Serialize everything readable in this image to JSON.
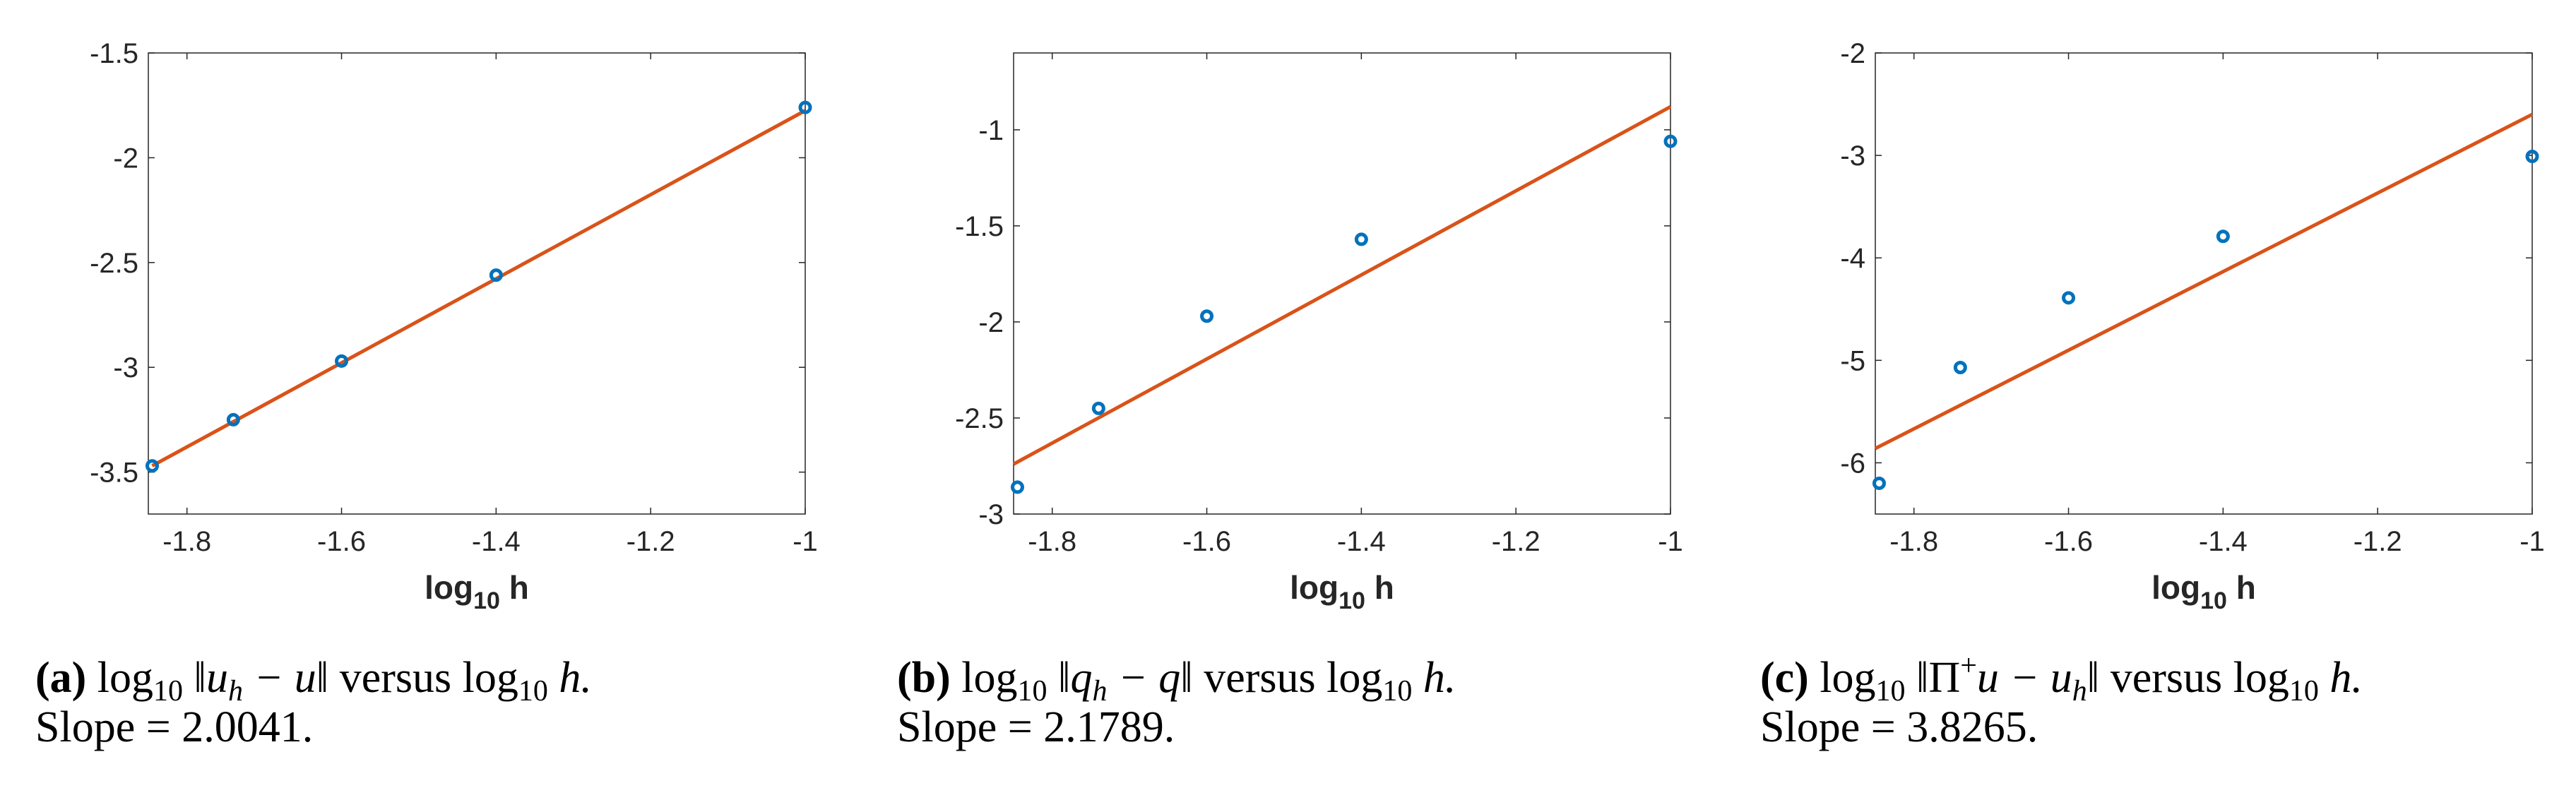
{
  "chart_data": [
    {
      "type": "scatter",
      "panel_label": "(a)",
      "xlabel": "log",
      "xlabel_sub": "10",
      "xlabel_var": "h",
      "xlim": [
        -1.85,
        -1.0
      ],
      "ylim": [
        -3.7,
        -1.5
      ],
      "xticks": [
        -1.8,
        -1.6,
        -1.4,
        -1.2,
        -1
      ],
      "xtick_labels": [
        "-1.8",
        "-1.6",
        "-1.4",
        "-1.2",
        "-1"
      ],
      "yticks": [
        -3.5,
        -3,
        -2.5,
        -2,
        -1.5
      ],
      "ytick_labels": [
        "-3.5",
        "-3",
        "-2.5",
        "-2",
        "-1.5"
      ],
      "series": [
        {
          "name": "data",
          "x": [
            -1.845,
            -1.74,
            -1.6,
            -1.4,
            -1.0
          ],
          "y": [
            -3.47,
            -3.25,
            -2.97,
            -2.56,
            -1.76
          ]
        },
        {
          "name": "fit",
          "x": [
            -1.845,
            -1.0
          ],
          "y": [
            -3.47,
            -1.775
          ]
        }
      ],
      "caption": {
        "tag": "(a)",
        "before": "log",
        "sub": "10",
        "norm_open": " ‖",
        "expr_var": "u",
        "expr_sub": "h",
        "expr_rest": " − u",
        "norm_close": "‖",
        "versus": "  versus  log",
        "versus_sub": "10",
        "versus_var": " h.",
        "slope": "Slope = 2.0041."
      }
    },
    {
      "type": "scatter",
      "panel_label": "(b)",
      "xlabel": "log",
      "xlabel_sub": "10",
      "xlabel_var": "h",
      "xlim": [
        -1.85,
        -1.0
      ],
      "ylim": [
        -3.0,
        -0.6
      ],
      "xticks": [
        -1.8,
        -1.6,
        -1.4,
        -1.2,
        -1
      ],
      "xtick_labels": [
        "-1.8",
        "-1.6",
        "-1.4",
        "-1.2",
        "-1"
      ],
      "yticks": [
        -3,
        -2.5,
        -2,
        -1.5,
        -1
      ],
      "ytick_labels": [
        "-3",
        "-2.5",
        "-2",
        "-1.5",
        "-1"
      ],
      "series": [
        {
          "name": "data",
          "x": [
            -1.845,
            -1.74,
            -1.6,
            -1.4,
            -1.0
          ],
          "y": [
            -2.86,
            -2.45,
            -1.97,
            -1.57,
            -1.06
          ]
        },
        {
          "name": "fit",
          "x": [
            -1.85,
            -1.0
          ],
          "y": [
            -2.74,
            -0.88
          ]
        }
      ],
      "caption": {
        "tag": "(b)",
        "before": "log",
        "sub": "10",
        "norm_open": " ‖",
        "expr_var": "q",
        "expr_sub": "h",
        "expr_rest": " − q",
        "norm_close": "‖",
        "versus": "  versus  log",
        "versus_sub": "10",
        "versus_var": " h.",
        "slope": "Slope = 2.1789."
      }
    },
    {
      "type": "scatter",
      "panel_label": "(c)",
      "xlabel": "log",
      "xlabel_sub": "10",
      "xlabel_var": "h",
      "xlim": [
        -1.85,
        -1.0
      ],
      "ylim": [
        -6.5,
        -2.0
      ],
      "xticks": [
        -1.8,
        -1.6,
        -1.4,
        -1.2,
        -1
      ],
      "xtick_labels": [
        "-1.8",
        "-1.6",
        "-1.4",
        "-1.2",
        "-1"
      ],
      "yticks": [
        -6,
        -5,
        -4,
        -3,
        -2
      ],
      "ytick_labels": [
        "-6",
        "-5",
        "-4",
        "-3",
        "-2"
      ],
      "series": [
        {
          "name": "data",
          "x": [
            -1.845,
            -1.74,
            -1.6,
            -1.4,
            -1.0
          ],
          "y": [
            -6.2,
            -5.07,
            -4.39,
            -3.79,
            -3.01
          ]
        },
        {
          "name": "fit",
          "x": [
            -1.85,
            -1.0
          ],
          "y": [
            -5.86,
            -2.6
          ]
        }
      ],
      "caption": {
        "tag": "(c)",
        "before": "log",
        "sub": "10",
        "norm_open": " ‖Π",
        "expr_var": "",
        "expr_sup": "+",
        "expr_var2": "u",
        "expr_rest": " − u",
        "expr_sub2": "h",
        "norm_close": "‖",
        "versus": "  versus  log",
        "versus_sub": "10",
        "versus_var": " h.",
        "slope": "Slope = 3.8265."
      }
    }
  ],
  "colors": {
    "fit_line": "#d95319",
    "markers": "#0072bd",
    "axes": "#262626"
  }
}
